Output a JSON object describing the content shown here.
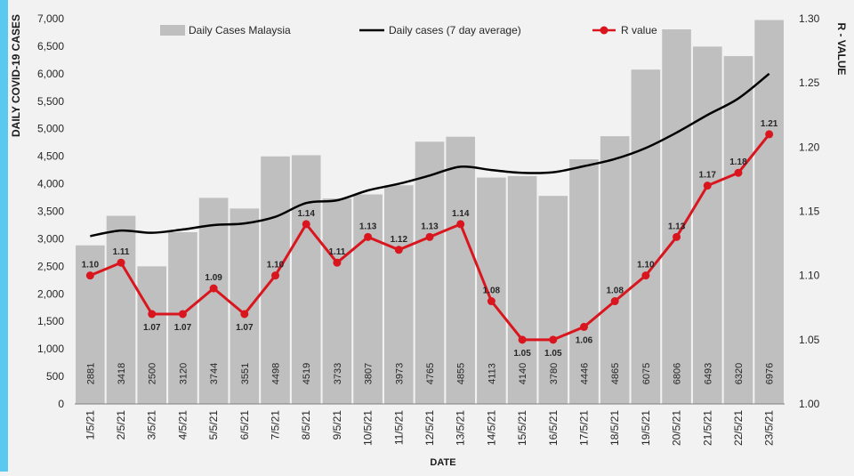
{
  "chart_data": {
    "type": "bar",
    "categories": [
      "1/5/21",
      "2/5/21",
      "3/5/21",
      "4/5/21",
      "5/5/21",
      "6/5/21",
      "7/5/21",
      "8/5/21",
      "9/5/21",
      "10/5/21",
      "11/5/21",
      "12/5/21",
      "13/5/21",
      "14/5/21",
      "15/5/21",
      "16/5/21",
      "17/5/21",
      "18/5/21",
      "19/5/21",
      "20/5/21",
      "21/5/21",
      "22/5/21",
      "23/5/21"
    ],
    "xlabel": "DATE",
    "ylabel": "DAILY COVID-19 CASES",
    "y2label": "R - VALUE",
    "ylim": [
      0,
      7000
    ],
    "y_ticks": [
      "0",
      "500",
      "1,000",
      "1,500",
      "2,000",
      "2,500",
      "3,000",
      "3,500",
      "4,000",
      "4,500",
      "5,000",
      "5,500",
      "6,000",
      "6,500",
      "7,000"
    ],
    "y2lim": [
      1.0,
      1.3
    ],
    "y2_ticks": [
      "1.00",
      "1.05",
      "1.10",
      "1.15",
      "1.20",
      "1.25",
      "1.30"
    ],
    "legend_position": "top",
    "grid": false,
    "series": [
      {
        "name": "Daily Cases Malaysia",
        "type": "bar",
        "color": "#bfbfbf",
        "values": [
          2881,
          3418,
          2500,
          3120,
          3744,
          3551,
          4498,
          4519,
          3733,
          3807,
          3973,
          4765,
          4855,
          4113,
          4140,
          3780,
          4446,
          4865,
          6075,
          6806,
          6493,
          6320,
          6976
        ]
      },
      {
        "name": "Daily cases (7 day average)",
        "type": "line",
        "color": "#000000",
        "values": [
          3050,
          3150,
          3110,
          3170,
          3250,
          3280,
          3400,
          3650,
          3700,
          3880,
          4000,
          4150,
          4310,
          4250,
          4200,
          4210,
          4320,
          4450,
          4650,
          4930,
          5250,
          5550,
          6000
        ]
      },
      {
        "name": "R value",
        "type": "line",
        "axis": "right",
        "color": "#d9161e",
        "value_labels": [
          "1.10",
          "1.11",
          "1.07",
          "1.07",
          "1.09",
          "1.07",
          "1.10",
          "1.14",
          "1.11",
          "1.13",
          "1.12",
          "1.13",
          "1.14",
          "1.08",
          "1.05",
          "1.05",
          "1.06",
          "1.08",
          "1.10",
          "1.13",
          "1.17",
          "1.18",
          "1.21"
        ],
        "values": [
          1.1,
          1.11,
          1.07,
          1.07,
          1.09,
          1.07,
          1.1,
          1.14,
          1.11,
          1.13,
          1.12,
          1.13,
          1.14,
          1.08,
          1.05,
          1.05,
          1.06,
          1.08,
          1.1,
          1.13,
          1.17,
          1.18,
          1.21
        ]
      }
    ]
  }
}
